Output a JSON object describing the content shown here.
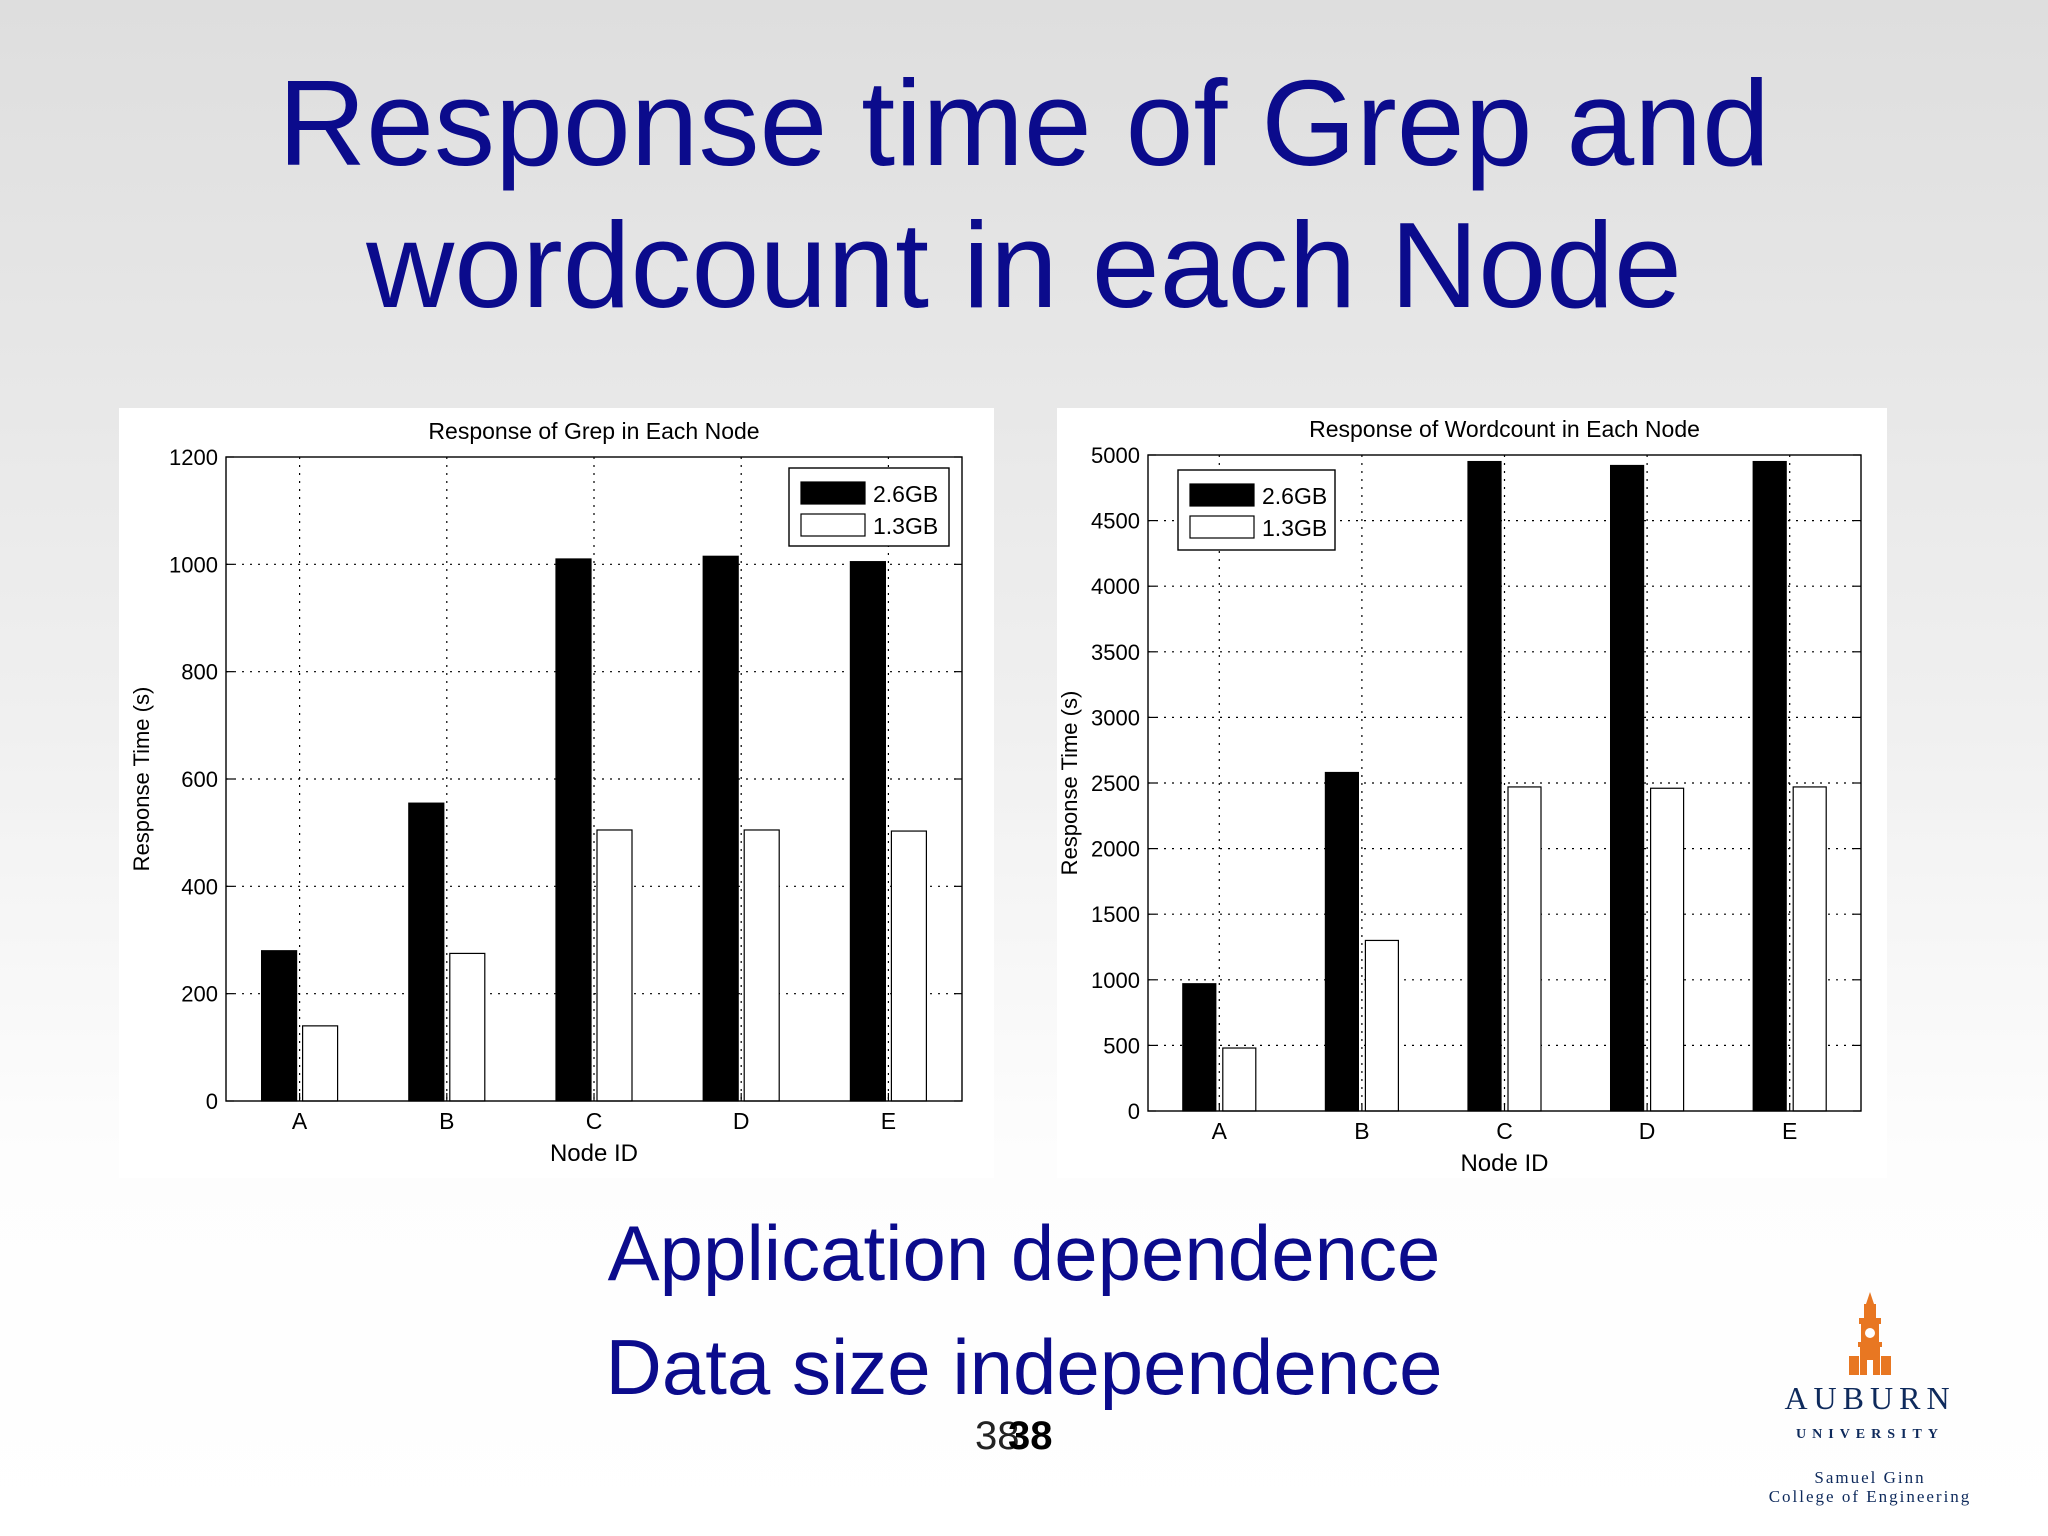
{
  "slide": {
    "title_line1": "Response time of Grep and",
    "title_line2": "wordcount in each Node",
    "bullets": [
      "Application dependence",
      "Data size independence"
    ],
    "page_number": "38",
    "logo": {
      "name": "AUBURN",
      "subtitle": "UNIVERSITY",
      "college_line1": "Samuel Ginn",
      "college_line2": "College of Engineering"
    },
    "colors": {
      "title": "#0b0b8c",
      "logo_orange": "#e87722",
      "logo_navy": "#0e2a5c"
    }
  },
  "chart_data": [
    {
      "type": "bar",
      "title": "Response of Grep in Each Node",
      "xlabel": "Node ID",
      "ylabel": "Response Time (s)",
      "categories": [
        "A",
        "B",
        "C",
        "D",
        "E"
      ],
      "ylim": [
        0,
        1200
      ],
      "yticks": [
        0,
        200,
        400,
        600,
        800,
        1000,
        1200
      ],
      "grid": true,
      "legend_position": "top-right",
      "series": [
        {
          "name": "2.6GB",
          "color": "#000000",
          "values": [
            280,
            555,
            1010,
            1015,
            1005
          ]
        },
        {
          "name": "1.3GB",
          "color": "#ffffff",
          "values": [
            140,
            275,
            505,
            505,
            503
          ]
        }
      ]
    },
    {
      "type": "bar",
      "title": "Response of Wordcount in Each Node",
      "xlabel": "Node ID",
      "ylabel": "Response Time (s)",
      "categories": [
        "A",
        "B",
        "C",
        "D",
        "E"
      ],
      "ylim": [
        0,
        5000
      ],
      "yticks": [
        0,
        500,
        1000,
        1500,
        2000,
        2500,
        3000,
        3500,
        4000,
        4500,
        5000
      ],
      "grid": true,
      "legend_position": "top-left",
      "series": [
        {
          "name": "2.6GB",
          "color": "#000000",
          "values": [
            970,
            2580,
            4950,
            4920,
            4950
          ]
        },
        {
          "name": "1.3GB",
          "color": "#ffffff",
          "values": [
            480,
            1300,
            2470,
            2460,
            2470
          ]
        }
      ]
    }
  ]
}
